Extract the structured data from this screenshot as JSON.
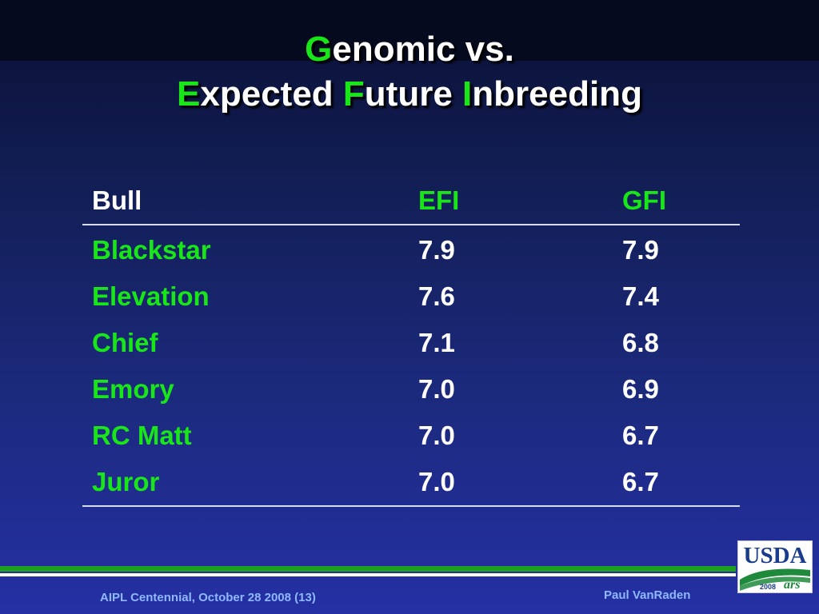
{
  "title": {
    "line1": [
      {
        "text": "G",
        "color": "#19e619"
      },
      {
        "text": "enomic vs.",
        "color": "#ffffff"
      }
    ],
    "line2": [
      {
        "text": "E",
        "color": "#19e619"
      },
      {
        "text": "xpected ",
        "color": "#ffffff"
      },
      {
        "text": "F",
        "color": "#19e619"
      },
      {
        "text": "uture ",
        "color": "#ffffff"
      },
      {
        "text": "I",
        "color": "#19e619"
      },
      {
        "text": "nbreeding",
        "color": "#ffffff"
      }
    ]
  },
  "table": {
    "headers": {
      "bull": "Bull",
      "efi": "EFI",
      "gfi": "GFI"
    },
    "rows": [
      {
        "bull": "Blackstar",
        "efi": "7.9",
        "gfi": "7.9"
      },
      {
        "bull": "Elevation",
        "efi": "7.6",
        "gfi": "7.4"
      },
      {
        "bull": "Chief",
        "efi": "7.1",
        "gfi": "6.8"
      },
      {
        "bull": "Emory",
        "efi": "7.0",
        "gfi": "6.9"
      },
      {
        "bull": "RC Matt",
        "efi": "7.0",
        "gfi": "6.7"
      },
      {
        "bull": "Juror",
        "efi": "7.0",
        "gfi": "6.7"
      }
    ]
  },
  "footer": {
    "left": "AIPL Centennial, October 28 2008 (13)",
    "right": "Paul VanRaden"
  },
  "logo": {
    "text": "USDA",
    "year": "2008",
    "ars": "ars",
    "icon": "usda-logo"
  },
  "colors": {
    "accent_green": "#19e619",
    "footer_text": "#8fb8ff",
    "usda_blue": "#1a3c8c",
    "usda_green": "#1f8a3c"
  }
}
